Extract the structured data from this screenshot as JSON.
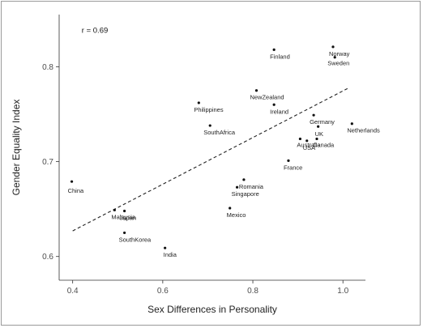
{
  "chart_data": {
    "type": "scatter",
    "xlabel": "Sex Differences in Personality",
    "ylabel": "Gender Equality Index",
    "annotation": "r = 0.69",
    "xlim": [
      0.37,
      1.05
    ],
    "ylim": [
      0.575,
      0.855
    ],
    "x_ticks": [
      0.4,
      0.6,
      0.8,
      1.0
    ],
    "x_tick_labels": [
      "0.4",
      "0.6",
      "0.8",
      "1.0"
    ],
    "y_ticks": [
      0.6,
      0.7,
      0.8
    ],
    "y_tick_labels": [
      "0.6",
      "0.7",
      "0.8"
    ],
    "grid": false,
    "trend_line": {
      "style": "dashed",
      "x": [
        0.4,
        1.01
      ],
      "y": [
        0.627,
        0.777
      ]
    },
    "points": [
      {
        "label": "China",
        "x": 0.398,
        "y": 0.679
      },
      {
        "label": "Malaysia",
        "x": 0.493,
        "y": 0.649
      },
      {
        "label": "Japan",
        "x": 0.515,
        "y": 0.648
      },
      {
        "label": "SouthKorea",
        "x": 0.515,
        "y": 0.625
      },
      {
        "label": "India",
        "x": 0.605,
        "y": 0.609
      },
      {
        "label": "Philippines",
        "x": 0.68,
        "y": 0.762
      },
      {
        "label": "SouthAfrica",
        "x": 0.705,
        "y": 0.738
      },
      {
        "label": "Mexico",
        "x": 0.749,
        "y": 0.651
      },
      {
        "label": "Singapore",
        "x": 0.765,
        "y": 0.673
      },
      {
        "label": "Romania",
        "x": 0.78,
        "y": 0.681
      },
      {
        "label": "NewZealand",
        "x": 0.808,
        "y": 0.775
      },
      {
        "label": "Finland",
        "x": 0.847,
        "y": 0.818
      },
      {
        "label": "Ireland",
        "x": 0.847,
        "y": 0.76
      },
      {
        "label": "France",
        "x": 0.879,
        "y": 0.701
      },
      {
        "label": "Australia",
        "x": 0.905,
        "y": 0.724
      },
      {
        "label": "USA",
        "x": 0.92,
        "y": 0.722
      },
      {
        "label": "Germany",
        "x": 0.935,
        "y": 0.749
      },
      {
        "label": "UK",
        "x": 0.945,
        "y": 0.737
      },
      {
        "label": "Canada",
        "x": 0.942,
        "y": 0.724
      },
      {
        "label": "Norway",
        "x": 0.978,
        "y": 0.821
      },
      {
        "label": "Sweden",
        "x": 0.982,
        "y": 0.81
      },
      {
        "label": "Netherlands",
        "x": 1.02,
        "y": 0.74
      }
    ]
  }
}
